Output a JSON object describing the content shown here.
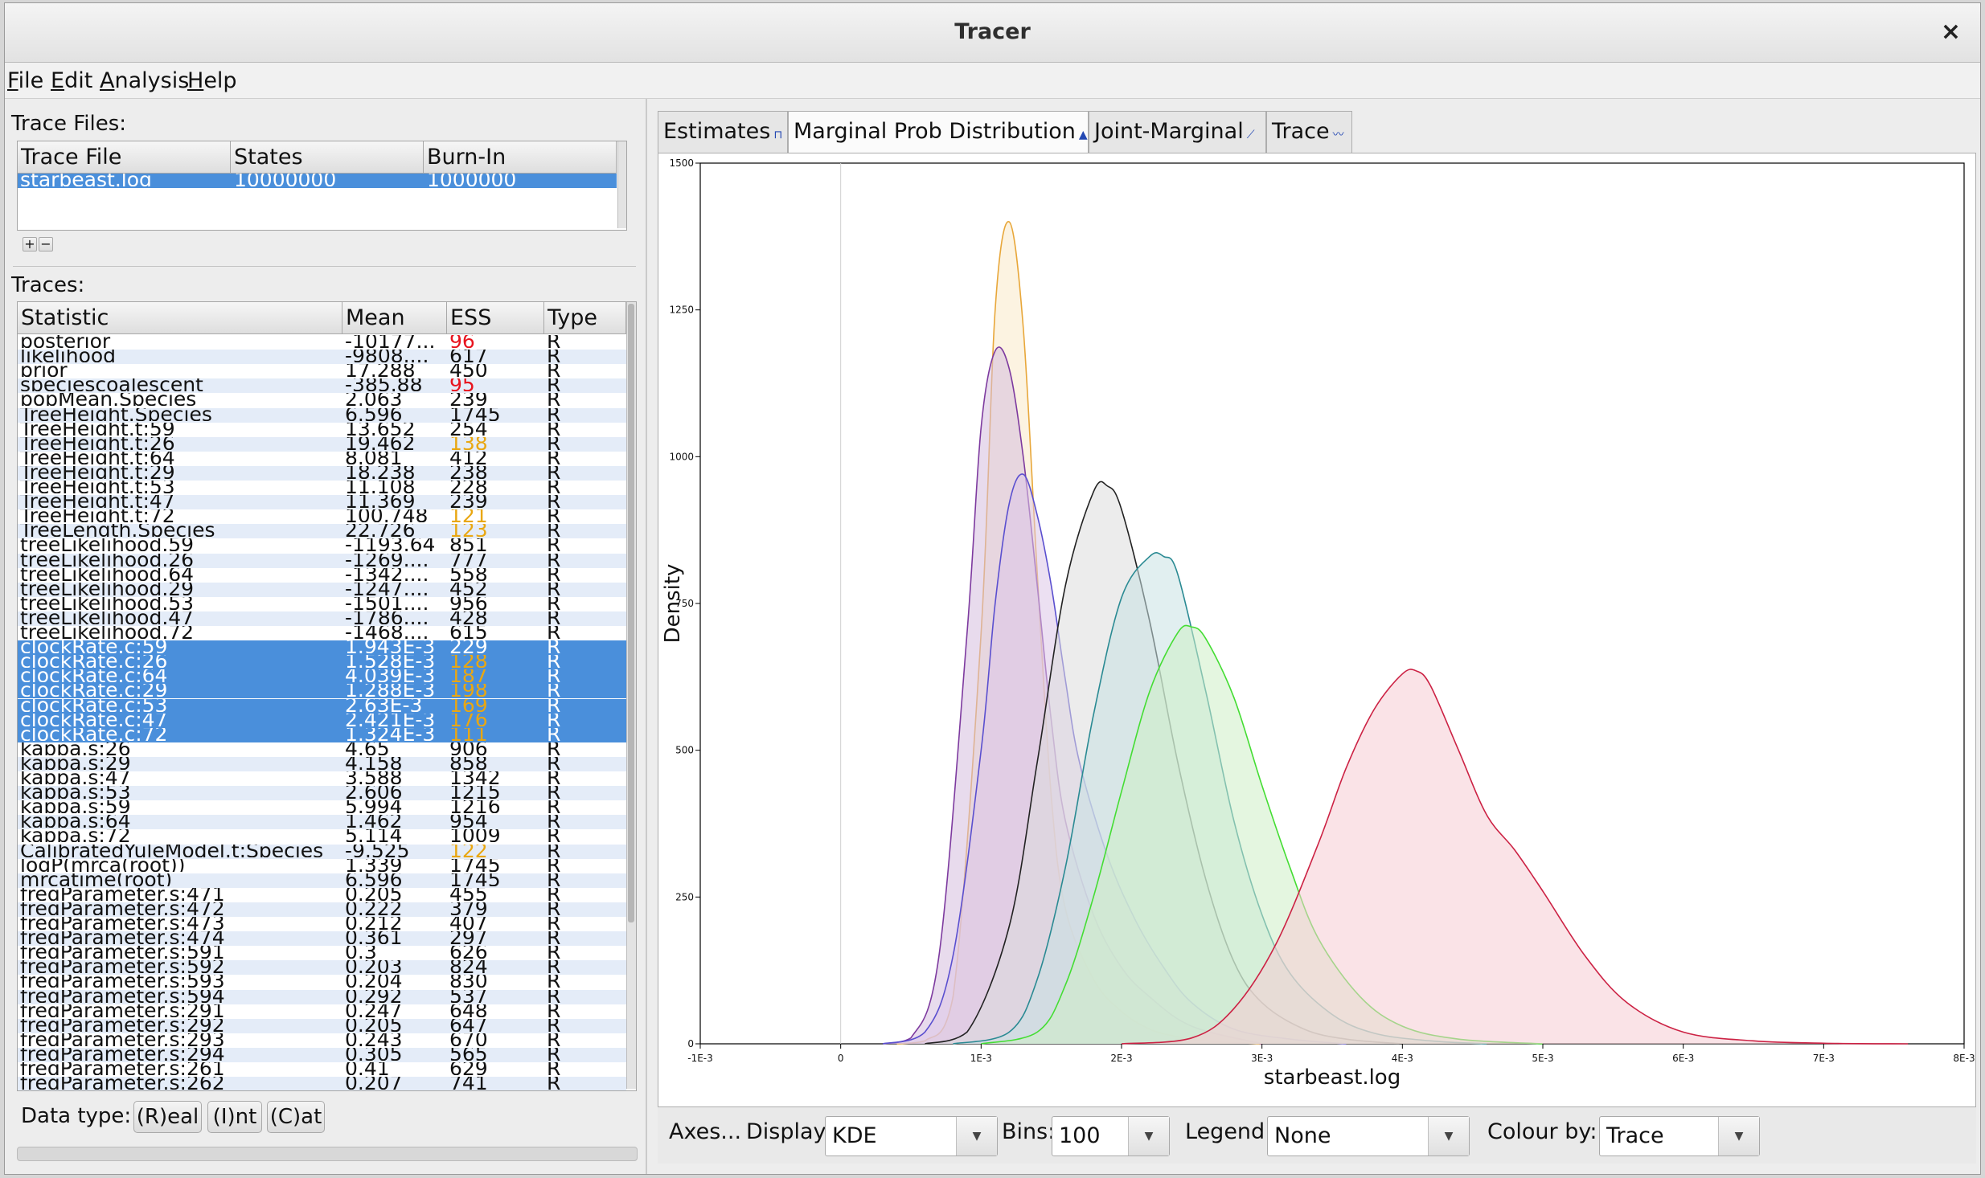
{
  "window": {
    "title": "Tracer",
    "close_icon": "×"
  },
  "menu": [
    {
      "label": "File",
      "key": "F",
      "rest": "ile"
    },
    {
      "label": "Edit",
      "key": "E",
      "rest": "dit"
    },
    {
      "label": "Analysis",
      "key": "A",
      "rest": "nalysis"
    },
    {
      "label": "Help",
      "key": "H",
      "rest": "elp"
    }
  ],
  "trace_files": {
    "label": "Trace Files:",
    "headers": [
      "Trace File",
      "States",
      "Burn-In"
    ],
    "rows": [
      {
        "file": "starbeast.log",
        "states": "10000000",
        "burnin": "1000000"
      }
    ],
    "add_label": "+",
    "remove_label": "−"
  },
  "traces": {
    "label": "Traces:",
    "headers": [
      "Statistic",
      "Mean",
      "ESS",
      "Type"
    ],
    "rows": [
      {
        "stat": "posterior",
        "mean": "-10177...",
        "ess": "96",
        "type": "R",
        "ess_flag": "bad",
        "sel": false
      },
      {
        "stat": "likelihood",
        "mean": "-9808....",
        "ess": "617",
        "type": "R",
        "ess_flag": "",
        "sel": false
      },
      {
        "stat": "prior",
        "mean": "17.288",
        "ess": "450",
        "type": "R",
        "ess_flag": "",
        "sel": false
      },
      {
        "stat": "speciescoalescent",
        "mean": "-385.88",
        "ess": "95",
        "type": "R",
        "ess_flag": "bad",
        "sel": false
      },
      {
        "stat": "popMean.Species",
        "mean": "2.063",
        "ess": "239",
        "type": "R",
        "ess_flag": "",
        "sel": false
      },
      {
        "stat": "TreeHeight.Species",
        "mean": "6.596",
        "ess": "1745",
        "type": "R",
        "ess_flag": "",
        "sel": false
      },
      {
        "stat": "TreeHeight.t:59",
        "mean": "13.652",
        "ess": "254",
        "type": "R",
        "ess_flag": "",
        "sel": false
      },
      {
        "stat": "TreeHeight.t:26",
        "mean": "19.462",
        "ess": "138",
        "type": "R",
        "ess_flag": "warn",
        "sel": false
      },
      {
        "stat": "TreeHeight.t:64",
        "mean": "8.081",
        "ess": "412",
        "type": "R",
        "ess_flag": "",
        "sel": false
      },
      {
        "stat": "TreeHeight.t:29",
        "mean": "18.238",
        "ess": "238",
        "type": "R",
        "ess_flag": "",
        "sel": false
      },
      {
        "stat": "TreeHeight.t:53",
        "mean": "11.108",
        "ess": "228",
        "type": "R",
        "ess_flag": "",
        "sel": false
      },
      {
        "stat": "TreeHeight.t:47",
        "mean": "11.369",
        "ess": "239",
        "type": "R",
        "ess_flag": "",
        "sel": false
      },
      {
        "stat": "TreeHeight.t:72",
        "mean": "100.748",
        "ess": "121",
        "type": "R",
        "ess_flag": "warn",
        "sel": false
      },
      {
        "stat": "TreeLength.Species",
        "mean": "22.726",
        "ess": "123",
        "type": "R",
        "ess_flag": "warn",
        "sel": false
      },
      {
        "stat": "treeLikelihood.59",
        "mean": "-1193.64",
        "ess": "851",
        "type": "R",
        "ess_flag": "",
        "sel": false
      },
      {
        "stat": "treeLikelihood.26",
        "mean": "-1269....",
        "ess": "777",
        "type": "R",
        "ess_flag": "",
        "sel": false
      },
      {
        "stat": "treeLikelihood.64",
        "mean": "-1342....",
        "ess": "558",
        "type": "R",
        "ess_flag": "",
        "sel": false
      },
      {
        "stat": "treeLikelihood.29",
        "mean": "-1247....",
        "ess": "452",
        "type": "R",
        "ess_flag": "",
        "sel": false
      },
      {
        "stat": "treeLikelihood.53",
        "mean": "-1501....",
        "ess": "956",
        "type": "R",
        "ess_flag": "",
        "sel": false
      },
      {
        "stat": "treeLikelihood.47",
        "mean": "-1786....",
        "ess": "428",
        "type": "R",
        "ess_flag": "",
        "sel": false
      },
      {
        "stat": "treeLikelihood.72",
        "mean": "-1468....",
        "ess": "615",
        "type": "R",
        "ess_flag": "",
        "sel": false
      },
      {
        "stat": "clockRate.c:59",
        "mean": "1.943E-3",
        "ess": "229",
        "type": "R",
        "ess_flag": "",
        "sel": true
      },
      {
        "stat": "clockRate.c:26",
        "mean": "1.528E-3",
        "ess": "128",
        "type": "R",
        "ess_flag": "warn",
        "sel": true
      },
      {
        "stat": "clockRate.c:64",
        "mean": "4.039E-3",
        "ess": "187",
        "type": "R",
        "ess_flag": "warn",
        "sel": true
      },
      {
        "stat": "clockRate.c:29",
        "mean": "1.288E-3",
        "ess": "198",
        "type": "R",
        "ess_flag": "warn",
        "sel": true
      },
      {
        "stat": "clockRate.c:53",
        "mean": "2.63E-3",
        "ess": "169",
        "type": "R",
        "ess_flag": "warn",
        "sel": true
      },
      {
        "stat": "clockRate.c:47",
        "mean": "2.421E-3",
        "ess": "176",
        "type": "R",
        "ess_flag": "warn",
        "sel": true
      },
      {
        "stat": "clockRate.c:72",
        "mean": "1.324E-3",
        "ess": "111",
        "type": "R",
        "ess_flag": "warn",
        "sel": true
      },
      {
        "stat": "kappa.s:26",
        "mean": "4.65",
        "ess": "906",
        "type": "R",
        "ess_flag": "",
        "sel": false
      },
      {
        "stat": "kappa.s:29",
        "mean": "4.158",
        "ess": "858",
        "type": "R",
        "ess_flag": "",
        "sel": false
      },
      {
        "stat": "kappa.s:47",
        "mean": "3.588",
        "ess": "1342",
        "type": "R",
        "ess_flag": "",
        "sel": false
      },
      {
        "stat": "kappa.s:53",
        "mean": "2.606",
        "ess": "1215",
        "type": "R",
        "ess_flag": "",
        "sel": false
      },
      {
        "stat": "kappa.s:59",
        "mean": "5.994",
        "ess": "1216",
        "type": "R",
        "ess_flag": "",
        "sel": false
      },
      {
        "stat": "kappa.s:64",
        "mean": "1.462",
        "ess": "954",
        "type": "R",
        "ess_flag": "",
        "sel": false
      },
      {
        "stat": "kappa.s:72",
        "mean": "5.114",
        "ess": "1009",
        "type": "R",
        "ess_flag": "",
        "sel": false
      },
      {
        "stat": "CalibratedYuleModel.t:Species",
        "mean": "-9.525",
        "ess": "122",
        "type": "R",
        "ess_flag": "warn",
        "sel": false
      },
      {
        "stat": "logP(mrca(root))",
        "mean": "1.339",
        "ess": "1745",
        "type": "R",
        "ess_flag": "",
        "sel": false
      },
      {
        "stat": "mrcatime(root)",
        "mean": "6.596",
        "ess": "1745",
        "type": "R",
        "ess_flag": "",
        "sel": false
      },
      {
        "stat": "freqParameter.s:471",
        "mean": "0.205",
        "ess": "455",
        "type": "R",
        "ess_flag": "",
        "sel": false
      },
      {
        "stat": "freqParameter.s:472",
        "mean": "0.222",
        "ess": "379",
        "type": "R",
        "ess_flag": "",
        "sel": false
      },
      {
        "stat": "freqParameter.s:473",
        "mean": "0.212",
        "ess": "407",
        "type": "R",
        "ess_flag": "",
        "sel": false
      },
      {
        "stat": "freqParameter.s:474",
        "mean": "0.361",
        "ess": "297",
        "type": "R",
        "ess_flag": "",
        "sel": false
      },
      {
        "stat": "freqParameter.s:591",
        "mean": "0.3",
        "ess": "626",
        "type": "R",
        "ess_flag": "",
        "sel": false
      },
      {
        "stat": "freqParameter.s:592",
        "mean": "0.203",
        "ess": "824",
        "type": "R",
        "ess_flag": "",
        "sel": false
      },
      {
        "stat": "freqParameter.s:593",
        "mean": "0.204",
        "ess": "830",
        "type": "R",
        "ess_flag": "",
        "sel": false
      },
      {
        "stat": "freqParameter.s:594",
        "mean": "0.292",
        "ess": "537",
        "type": "R",
        "ess_flag": "",
        "sel": false
      },
      {
        "stat": "freqParameter.s:291",
        "mean": "0.247",
        "ess": "648",
        "type": "R",
        "ess_flag": "",
        "sel": false
      },
      {
        "stat": "freqParameter.s:292",
        "mean": "0.205",
        "ess": "647",
        "type": "R",
        "ess_flag": "",
        "sel": false
      },
      {
        "stat": "freqParameter.s:293",
        "mean": "0.243",
        "ess": "670",
        "type": "R",
        "ess_flag": "",
        "sel": false
      },
      {
        "stat": "freqParameter.s:294",
        "mean": "0.305",
        "ess": "565",
        "type": "R",
        "ess_flag": "",
        "sel": false
      },
      {
        "stat": "freqParameter.s:261",
        "mean": "0.41",
        "ess": "629",
        "type": "R",
        "ess_flag": "",
        "sel": false
      },
      {
        "stat": "freqParameter.s:262",
        "mean": "0.207",
        "ess": "741",
        "type": "R",
        "ess_flag": "",
        "sel": false
      }
    ]
  },
  "data_type": {
    "label": "Data type:",
    "real": "(R)eal",
    "int": "(I)nt",
    "cat": "(C)at"
  },
  "tabs": [
    {
      "label": "Estimates",
      "icon": "estimates-icon",
      "glyph": "⊓"
    },
    {
      "label": "Marginal Prob Distribution",
      "icon": "distribution-icon",
      "glyph": "▲",
      "active": true
    },
    {
      "label": "Joint-Marginal",
      "icon": "joint-marginal-icon",
      "glyph": "⟋"
    },
    {
      "label": "Trace",
      "icon": "trace-icon",
      "glyph": "〰"
    }
  ],
  "controls": {
    "axes_label": "Axes...",
    "display_label": "Display:",
    "display_value": "KDE",
    "bins_label": "Bins:",
    "bins_value": "100",
    "legend_label": "Legend:",
    "legend_value": "None",
    "colour_label": "Colour by:",
    "colour_value": "Trace"
  },
  "colors": {
    "selection": "#4a8fdb",
    "ess_bad": "#e8141e",
    "ess_warn": "#e9a712"
  },
  "chart_data": {
    "type": "area",
    "title": "",
    "xlabel": "starbeast.log",
    "ylabel": "Density",
    "xlim": [
      -0.001,
      0.008
    ],
    "ylim": [
      0,
      1500
    ],
    "xticks": [
      "-1E-3",
      "0",
      "1E-3",
      "2E-3",
      "3E-3",
      "4E-3",
      "5E-3",
      "6E-3",
      "7E-3",
      "8E-3"
    ],
    "yticks": [
      "0",
      "250",
      "500",
      "750",
      "1000",
      "1250",
      "1500"
    ],
    "grid": false,
    "legend": "none",
    "series": [
      {
        "color": "#e8a73a",
        "fill": "#fae9c9",
        "x": [
          0.0004,
          0.0006,
          0.0008,
          0.001,
          0.0011,
          0.0012,
          0.0013,
          0.0014,
          0.0015,
          0.0016,
          0.0018,
          0.002,
          0.0022,
          0.0024,
          0.0026,
          0.003
        ],
        "y": [
          0,
          5,
          80,
          700,
          1250,
          1400,
          1220,
          800,
          420,
          230,
          110,
          55,
          25,
          12,
          5,
          0
        ]
      },
      {
        "color": "#7d3a9f",
        "fill": "#d6bedf",
        "x": [
          0.0003,
          0.0005,
          0.0007,
          0.0009,
          0.001,
          0.0011,
          0.0012,
          0.0013,
          0.0014,
          0.0015,
          0.0016,
          0.0018,
          0.002,
          0.0022,
          0.0025,
          0.003
        ],
        "y": [
          0,
          10,
          150,
          700,
          1050,
          1180,
          1150,
          1000,
          780,
          550,
          380,
          220,
          130,
          80,
          30,
          0
        ]
      },
      {
        "color": "#5a4fcf",
        "fill": "#dcc7e8",
        "x": [
          0.0003,
          0.0006,
          0.0008,
          0.001,
          0.0011,
          0.0012,
          0.0013,
          0.0014,
          0.0015,
          0.0016,
          0.0017,
          0.0019,
          0.0021,
          0.0023,
          0.0025,
          0.0028,
          0.0032,
          0.0036
        ],
        "y": [
          0,
          20,
          150,
          500,
          750,
          920,
          970,
          900,
          780,
          620,
          480,
          320,
          210,
          130,
          70,
          25,
          8,
          0
        ]
      },
      {
        "color": "#222222",
        "fill": "#dcdcdc",
        "x": [
          0.0006,
          0.0009,
          0.0012,
          0.0014,
          0.0016,
          0.0018,
          0.0019,
          0.002,
          0.0022,
          0.0024,
          0.0026,
          0.0028,
          0.003,
          0.0033,
          0.0036,
          0.004
        ],
        "y": [
          0,
          20,
          200,
          480,
          780,
          940,
          950,
          910,
          720,
          480,
          280,
          140,
          70,
          25,
          8,
          0
        ]
      },
      {
        "color": "#2a8a93",
        "fill": "#c9e1e4",
        "x": [
          0.0008,
          0.0012,
          0.0014,
          0.0016,
          0.0018,
          0.002,
          0.0022,
          0.0023,
          0.0024,
          0.0026,
          0.0028,
          0.003,
          0.0032,
          0.0035,
          0.0038,
          0.0042,
          0.0046
        ],
        "y": [
          0,
          20,
          110,
          300,
          560,
          760,
          830,
          830,
          800,
          600,
          380,
          220,
          120,
          50,
          18,
          5,
          0
        ]
      },
      {
        "color": "#44dd33",
        "fill": "#cdeec7",
        "x": [
          0.001,
          0.0014,
          0.0016,
          0.0018,
          0.002,
          0.0022,
          0.0024,
          0.0025,
          0.0026,
          0.0028,
          0.003,
          0.0032,
          0.0034,
          0.0037,
          0.004,
          0.0044,
          0.005
        ],
        "y": [
          0,
          20,
          100,
          250,
          430,
          600,
          700,
          710,
          690,
          590,
          440,
          300,
          180,
          80,
          30,
          8,
          0
        ]
      },
      {
        "color": "#cc2244",
        "fill": "#f6ccd4",
        "x": [
          0.002,
          0.0025,
          0.0028,
          0.0031,
          0.0034,
          0.0036,
          0.0038,
          0.004,
          0.0041,
          0.0042,
          0.0044,
          0.0046,
          0.0048,
          0.005,
          0.0053,
          0.0056,
          0.006,
          0.0065,
          0.007,
          0.0076
        ],
        "y": [
          0,
          10,
          60,
          170,
          340,
          470,
          570,
          630,
          635,
          610,
          500,
          390,
          330,
          260,
          150,
          70,
          20,
          5,
          1,
          0
        ]
      }
    ]
  }
}
